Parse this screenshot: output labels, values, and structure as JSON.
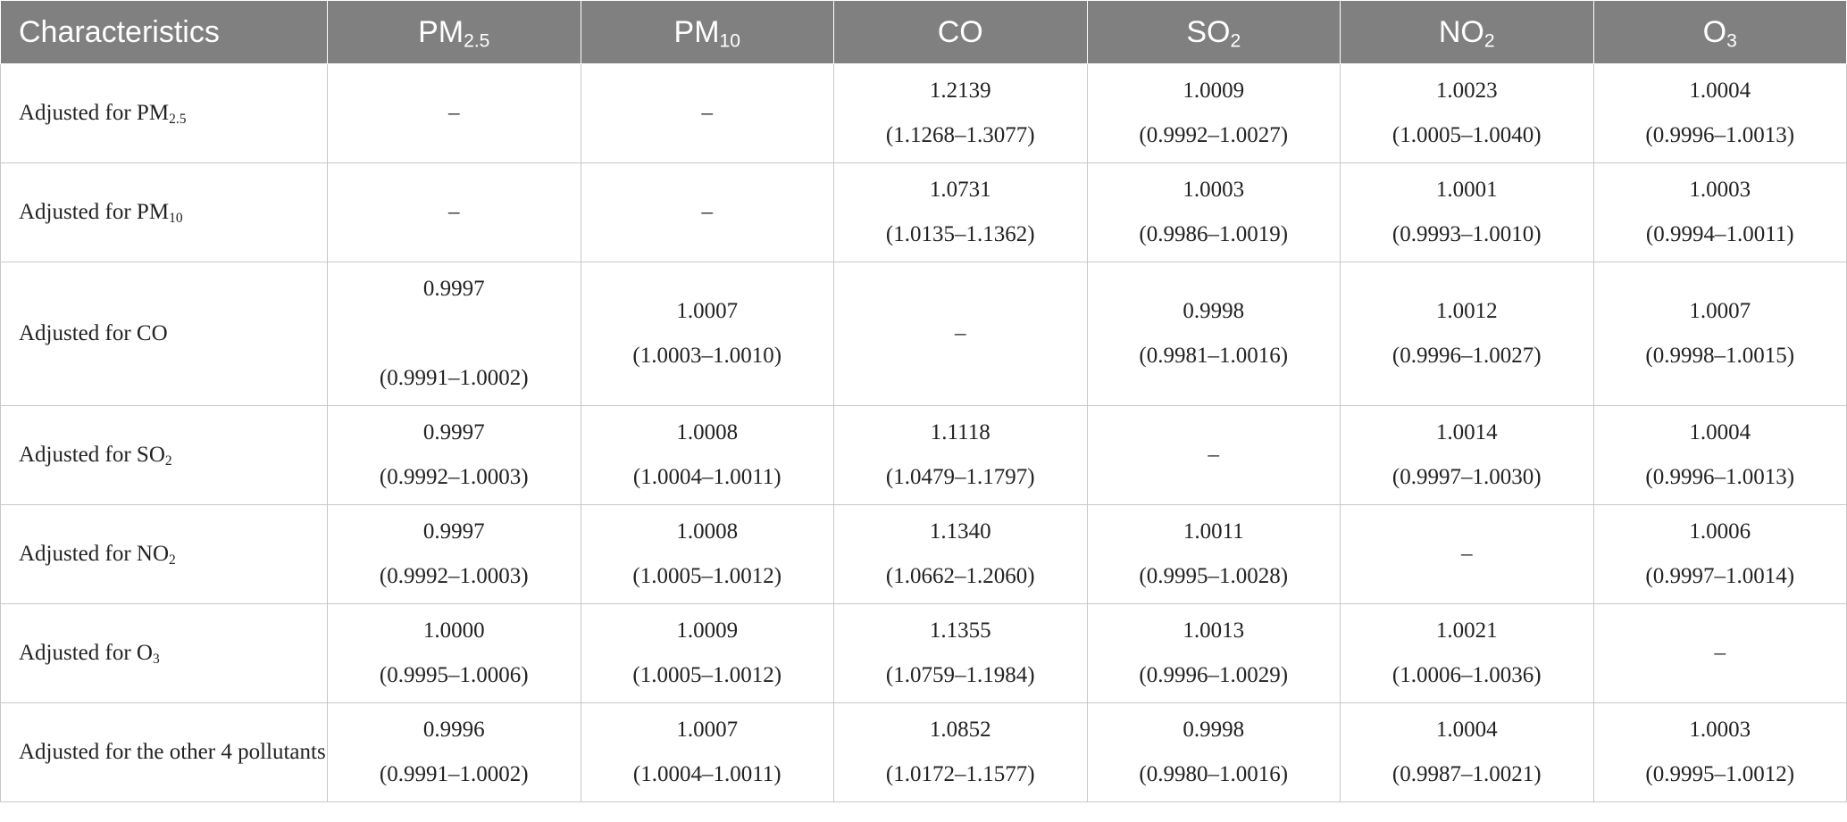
{
  "table": {
    "header": [
      {
        "text": "Characteristics"
      },
      {
        "text": "PM",
        "sub": "2.5"
      },
      {
        "text": "PM",
        "sub": "10"
      },
      {
        "text": "CO"
      },
      {
        "text": "SO",
        "sub": "2"
      },
      {
        "text": "NO",
        "sub": "2"
      },
      {
        "text": "O",
        "sub": "3"
      }
    ],
    "rows": [
      {
        "label": {
          "text": "Adjusted for PM",
          "sub": "2.5"
        },
        "cells": [
          "–",
          "–",
          [
            "1.2139",
            "(1.1268–1.3077)"
          ],
          [
            "1.0009",
            "(0.9992–1.0027)"
          ],
          [
            "1.0023",
            "(1.0005–1.0040)"
          ],
          [
            "1.0004",
            "(0.9996–1.0013)"
          ]
        ]
      },
      {
        "label": {
          "text": "Adjusted for PM",
          "sub": "10"
        },
        "cells": [
          "–",
          "–",
          [
            "1.0731",
            "(1.0135–1.1362)"
          ],
          [
            "1.0003",
            "(0.9986–1.0019)"
          ],
          [
            "1.0001",
            "(0.9993–1.0010)"
          ],
          [
            "1.0003",
            "(0.9994–1.0011)"
          ]
        ]
      },
      {
        "label": {
          "text": "Adjusted for CO"
        },
        "cells": [
          [
            "0.9997",
            "(0.9991–1.0002)"
          ],
          [
            "1.0007",
            "(1.0003–1.0010)"
          ],
          "–",
          [
            "0.9998",
            "(0.9981–1.0016)"
          ],
          [
            "1.0012",
            "(0.9996–1.0027)"
          ],
          [
            "1.0007",
            "(0.9998–1.0015)"
          ]
        ]
      },
      {
        "label": {
          "text": "Adjusted for SO",
          "sub": "2"
        },
        "cells": [
          [
            "0.9997",
            "(0.9992–1.0003)"
          ],
          [
            "1.0008",
            "(1.0004–1.0011)"
          ],
          [
            "1.1118",
            "(1.0479–1.1797)"
          ],
          "–",
          [
            "1.0014",
            "(0.9997–1.0030)"
          ],
          [
            "1.0004",
            "(0.9996–1.0013)"
          ]
        ]
      },
      {
        "label": {
          "text": "Adjusted for NO",
          "sub": "2"
        },
        "cells": [
          [
            "0.9997",
            "(0.9992–1.0003)"
          ],
          [
            "1.0008",
            "(1.0005–1.0012)"
          ],
          [
            "1.1340",
            "(1.0662–1.2060)"
          ],
          [
            "1.0011",
            "(0.9995–1.0028)"
          ],
          "–",
          [
            "1.0006",
            "(0.9997–1.0014)"
          ]
        ]
      },
      {
        "label": {
          "text": "Adjusted for O",
          "sub": "3"
        },
        "cells": [
          [
            "1.0000",
            "(0.9995–1.0006)"
          ],
          [
            "1.0009",
            "(1.0005–1.0012)"
          ],
          [
            "1.1355",
            "(1.0759–1.1984)"
          ],
          [
            "1.0013",
            "(0.9996–1.0029)"
          ],
          [
            "1.0021",
            "(1.0006–1.0036)"
          ],
          "–"
        ]
      },
      {
        "label": {
          "text": "Adjusted for the other 4 pollutants"
        },
        "cells": [
          [
            "0.9996",
            "(0.9991–1.0002)"
          ],
          [
            "1.0007",
            "(1.0004–1.0011)"
          ],
          [
            "1.0852",
            "(1.0172–1.1577)"
          ],
          [
            "0.9998",
            "(0.9980–1.0016)"
          ],
          [
            "1.0004",
            "(0.9987–1.0021)"
          ],
          [
            "1.0003",
            "(0.9995–1.0012)"
          ]
        ]
      }
    ]
  }
}
